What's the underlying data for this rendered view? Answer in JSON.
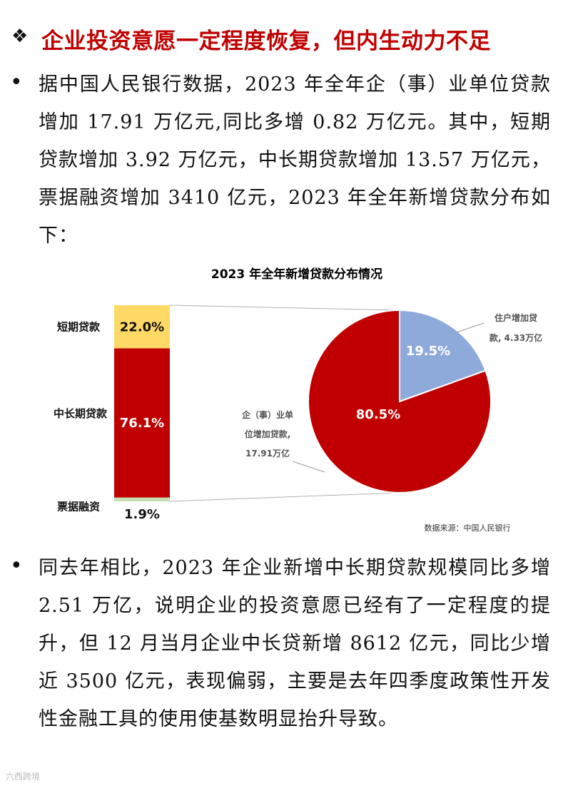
{
  "heading": {
    "marker": "❖",
    "text": "企业投资意愿一定程度恢复，但内生动力不足"
  },
  "paragraph1": "据中国人民银行数据，2023 年全年企（事）业单位贷款增加 17.91 万亿元,同比多增 0.82 万亿元。其中，短期贷款增加 3.92 万亿元，中长期贷款增加 13.57 万亿元，票据融资增加 3410 亿元，2023 年全年新增贷款分布如下：",
  "paragraph2": "同去年相比，2023 年企业新增中长期贷款规模同比多增 2.51 万亿，说明企业的投资意愿已经有了一定程度的提升，但 12 月当月企业中长贷新增 8612 亿元，同比少增近 3500 亿元，表现偏弱，主要是去年四季度政策性开发性金融工具的使用使基数明显抬升导致。",
  "bullet": "•",
  "chart_data": [
    {
      "type": "pie",
      "title": "2023 年全年新增贷款分布情况",
      "categories": [
        "住户增加贷款, 4.33万亿",
        "企（事）业单位增加贷款, 17.91万亿"
      ],
      "values": [
        19.5,
        80.5
      ],
      "labels": [
        "19.5%",
        "80.5%"
      ],
      "callouts": {
        "household": [
          "住户增加贷",
          "款, 4.33万亿"
        ],
        "enterprise": [
          "企（事）业单",
          "位增加贷款,",
          "17.91万亿"
        ]
      },
      "colors": [
        "#8eaadb",
        "#c00000"
      ]
    },
    {
      "type": "bar",
      "stacked": true,
      "categories": [
        "短期贷款",
        "中长期贷款",
        "票据融资"
      ],
      "values": [
        22.0,
        76.1,
        1.9
      ],
      "labels": [
        "22.0%",
        "76.1%",
        "1.9%"
      ],
      "colors": [
        "#ffd966",
        "#c00000",
        "#c5e0b4"
      ]
    }
  ],
  "source": "数据来源：中国人民银行",
  "watermark": "六西跨境"
}
